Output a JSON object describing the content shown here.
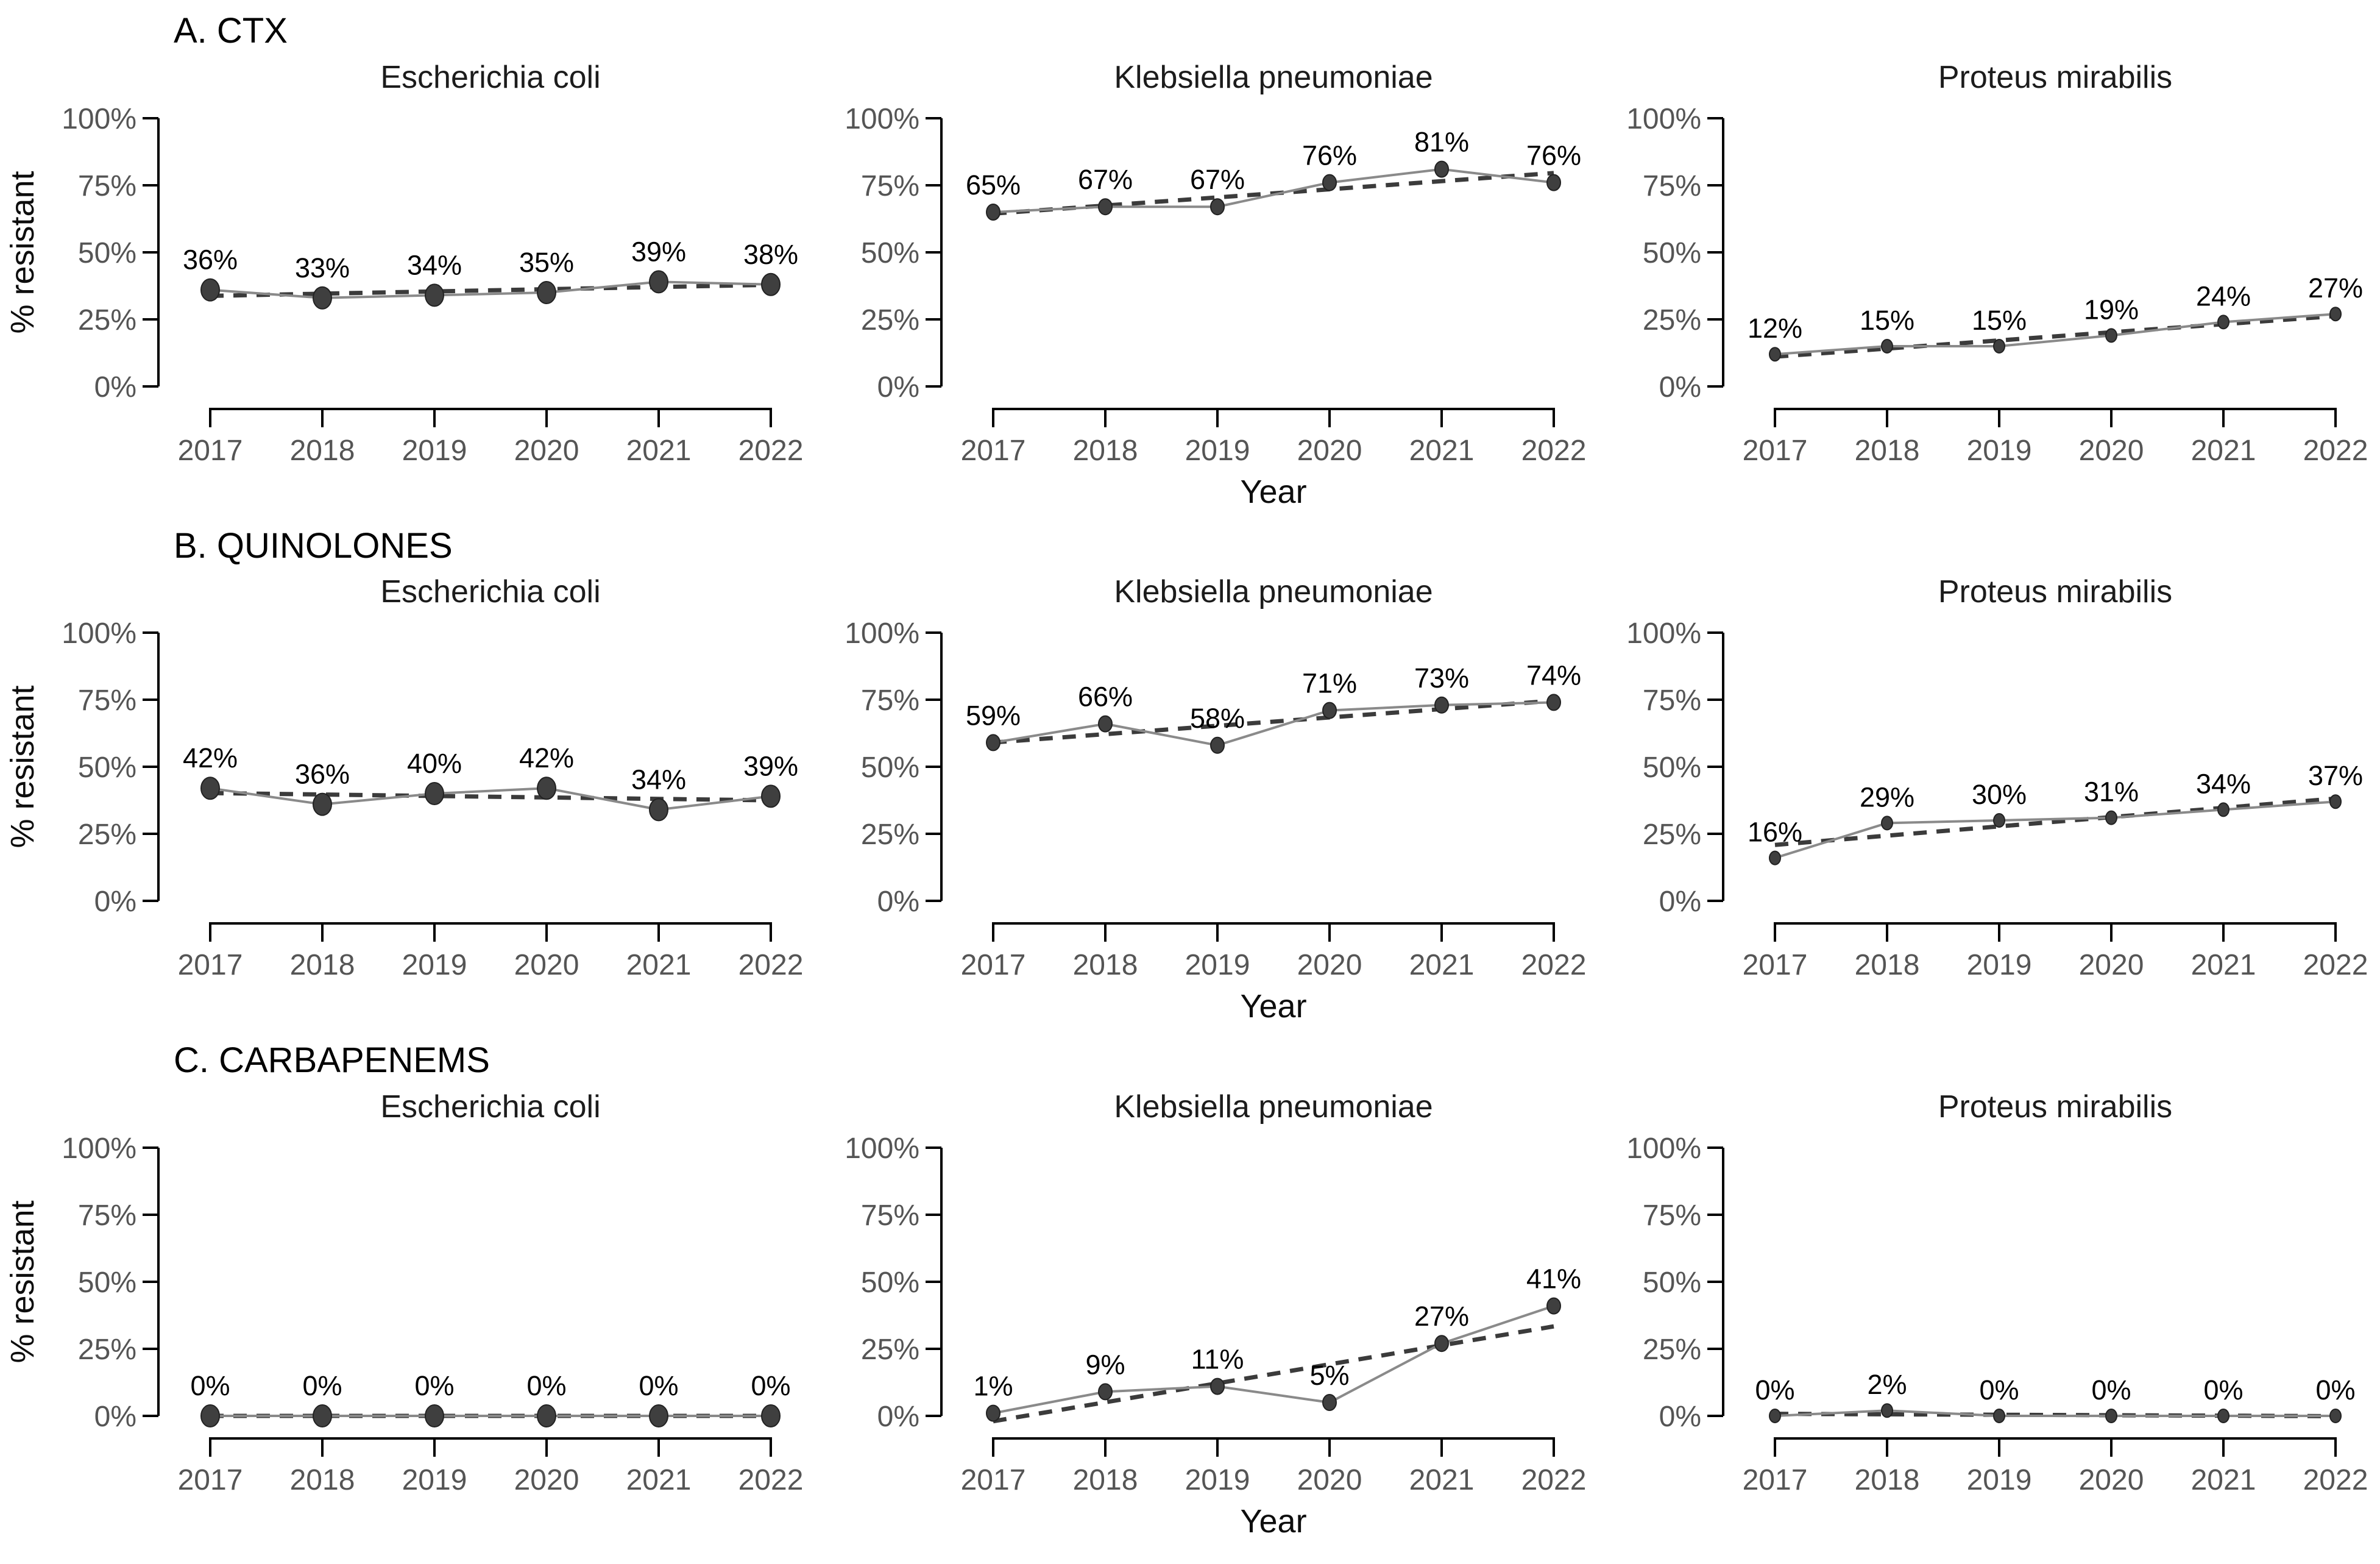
{
  "figure": {
    "ylabel": "% resistant",
    "xlabel": "Year",
    "colors": {
      "background": "#ffffff",
      "point_fill": "#3f3f3f",
      "point_stroke": "#222222",
      "series_line": "#8a8a8a",
      "trend_line": "#3b3b3b",
      "axis": "#000000",
      "tick_text": "#555555",
      "panel_title_text": "#1c1c1c",
      "data_label_text": "#000000",
      "section_title_text": "#000000"
    },
    "point_sizes": {
      "large": 15,
      "medium": 11,
      "small": 9
    }
  },
  "chart_data": [
    {
      "type": "line",
      "panel_group": "A. CTX",
      "x": [
        2017,
        2018,
        2019,
        2020,
        2021,
        2022
      ],
      "ylim": [
        0,
        100
      ],
      "y_ticks": [
        "0%",
        "25%",
        "50%",
        "75%",
        "100%"
      ],
      "ylabel": "% resistant",
      "xlabel": "Year",
      "legend": "none",
      "annotations": "each point labeled with its percent value; dashed straight line = linear trend fit",
      "series": [
        {
          "name": "Escherichia coli",
          "values": [
            36,
            33,
            34,
            35,
            39,
            38
          ],
          "point_size": "large"
        },
        {
          "name": "Klebsiella pneumoniae",
          "values": [
            65,
            67,
            67,
            76,
            81,
            76
          ],
          "point_size": "medium"
        },
        {
          "name": "Proteus mirabilis",
          "values": [
            12,
            15,
            15,
            19,
            24,
            27
          ],
          "point_size": "small"
        }
      ]
    },
    {
      "type": "line",
      "panel_group": "B. QUINOLONES",
      "x": [
        2017,
        2018,
        2019,
        2020,
        2021,
        2022
      ],
      "ylim": [
        0,
        100
      ],
      "y_ticks": [
        "0%",
        "25%",
        "50%",
        "75%",
        "100%"
      ],
      "ylabel": "% resistant",
      "xlabel": "Year",
      "legend": "none",
      "annotations": "each point labeled with its percent value; dashed straight line = linear trend fit",
      "series": [
        {
          "name": "Escherichia coli",
          "values": [
            42,
            36,
            40,
            42,
            34,
            39
          ],
          "point_size": "large"
        },
        {
          "name": "Klebsiella pneumoniae",
          "values": [
            59,
            66,
            58,
            71,
            73,
            74
          ],
          "point_size": "medium"
        },
        {
          "name": "Proteus mirabilis",
          "values": [
            16,
            29,
            30,
            31,
            34,
            37
          ],
          "point_size": "small"
        }
      ]
    },
    {
      "type": "line",
      "panel_group": "C. CARBAPENEMS",
      "x": [
        2017,
        2018,
        2019,
        2020,
        2021,
        2022
      ],
      "ylim": [
        0,
        100
      ],
      "y_ticks": [
        "0%",
        "25%",
        "50%",
        "75%",
        "100%"
      ],
      "ylabel": "% resistant",
      "xlabel": "Year",
      "legend": "none",
      "annotations": "each point labeled with its percent value; dashed straight line = linear trend fit",
      "series": [
        {
          "name": "Escherichia coli",
          "values": [
            0,
            0,
            0,
            0,
            0,
            0
          ],
          "point_size": "large"
        },
        {
          "name": "Klebsiella pneumoniae",
          "values": [
            1,
            9,
            11,
            5,
            27,
            41
          ],
          "point_size": "medium"
        },
        {
          "name": "Proteus mirabilis",
          "values": [
            0,
            2,
            0,
            0,
            0,
            0
          ],
          "point_size": "small"
        }
      ]
    }
  ]
}
